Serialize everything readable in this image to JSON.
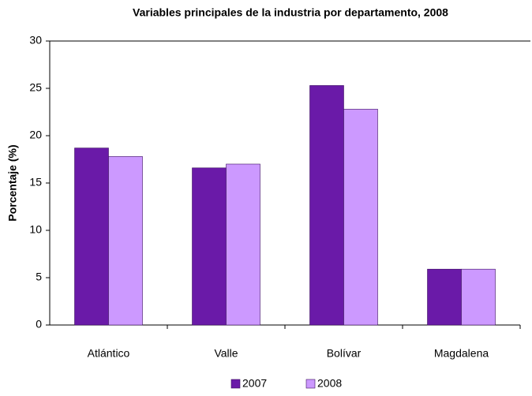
{
  "chart_data": {
    "type": "bar",
    "title": "Variables principales de la industria por departamento, 2008",
    "y_label": "Porcentaje (%)",
    "categories": [
      "Atlántico",
      "Valle",
      "Bolívar",
      "Magdalena"
    ],
    "series": [
      {
        "name": "2007",
        "color": "#6a1aa8",
        "values": [
          18.7,
          16.6,
          25.3,
          5.9
        ]
      },
      {
        "name": "2008",
        "color": "#cc99ff",
        "values": [
          17.8,
          17.0,
          22.8,
          5.9
        ]
      }
    ],
    "ylim": [
      0,
      30
    ],
    "yticks": [
      0,
      5,
      10,
      15,
      20,
      25,
      30
    ],
    "legend": "bottom"
  }
}
